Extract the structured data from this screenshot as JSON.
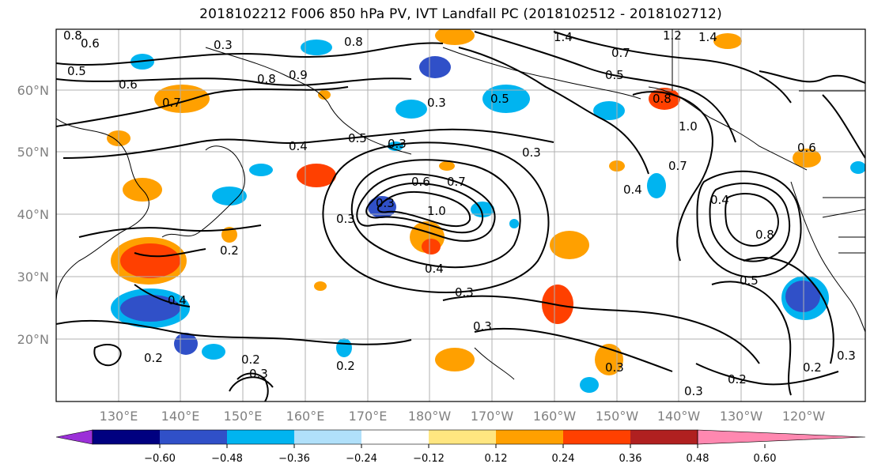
{
  "title": "2018102212 F006 850 hPa PV, IVT Landfall PC (2018102512 - 2018102712)",
  "lat_labels": [
    "60°N",
    "50°N",
    "40°N",
    "30°N",
    "20°N"
  ],
  "lon_labels": [
    "130°E",
    "140°E",
    "150°E",
    "160°E",
    "170°E",
    "180°W",
    "170°W",
    "160°W",
    "150°W",
    "140°W",
    "130°W",
    "120°W"
  ],
  "colorbar": {
    "ticks": [
      "−0.60",
      "−0.48",
      "−0.36",
      "−0.24",
      "−0.12",
      "0.12",
      "0.24",
      "0.36",
      "0.48",
      "0.60"
    ],
    "colors": [
      "#9b30d8",
      "#000080",
      "#3050c8",
      "#00b4f0",
      "#b0e0fa",
      "#ffffff",
      "#ffe680",
      "#ffa000",
      "#ff4000",
      "#b02020",
      "#ff88b0"
    ]
  },
  "contour_labels": [
    "0.8",
    "0.6",
    "0.5",
    "0.8",
    "0.6",
    "0.7",
    "0.8",
    "0.3",
    "0.9",
    "1.4",
    "0.7",
    "1.2",
    "1.4",
    "0.5",
    "0.8",
    "0.5",
    "0.3",
    "0.4",
    "0.3",
    "0.3",
    "0.5",
    "0.3",
    "1.0",
    "0.6",
    "0.7",
    "0.3",
    "0.4",
    "0.7",
    "0.4",
    "0.2",
    "0.4",
    "1.0",
    "0.2",
    "0.4",
    "0.3",
    "0.5",
    "0.3",
    "0.2",
    "0.3",
    "0.2",
    "0.3",
    "0.2",
    "0.3",
    "0.3",
    "0.2",
    "0.8",
    "0.6"
  ]
}
